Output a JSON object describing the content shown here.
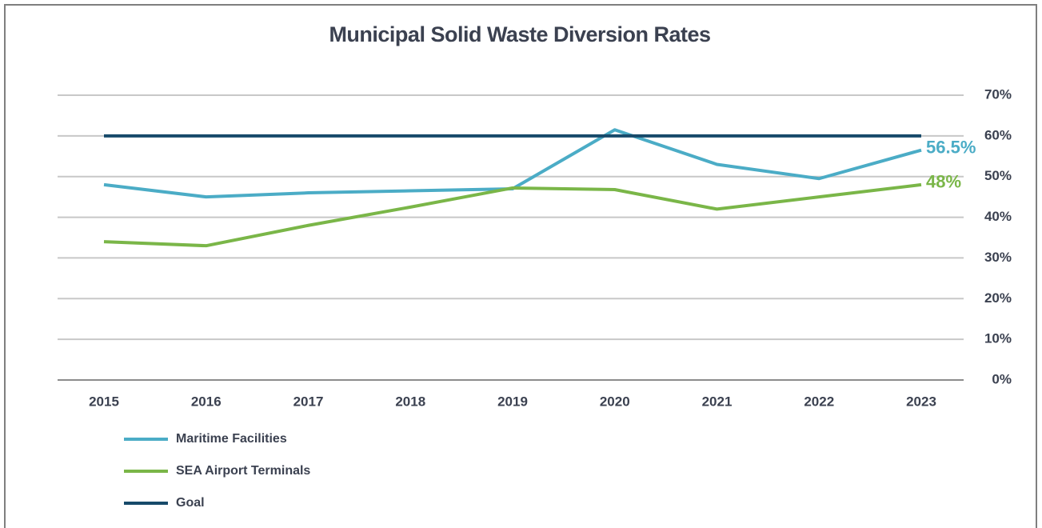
{
  "chart_data": {
    "type": "line",
    "title": "Municipal Solid Waste Diversion Rates",
    "categories": [
      "2015",
      "2016",
      "2017",
      "2018",
      "2019",
      "2020",
      "2021",
      "2022",
      "2023"
    ],
    "series": [
      {
        "name": "Maritime Facilities",
        "color": "#4bacc6",
        "values": [
          48,
          45,
          46,
          46.5,
          47,
          61.5,
          53,
          49.5,
          56.5
        ],
        "value_labels": [
          null,
          null,
          null,
          null,
          null,
          null,
          null,
          null,
          "56.5%"
        ]
      },
      {
        "name": "SEA Airport Terminals",
        "color": "#7ab648",
        "values": [
          34,
          33,
          38,
          42.5,
          47.2,
          46.8,
          42,
          45,
          48
        ],
        "value_labels": [
          null,
          null,
          null,
          null,
          null,
          null,
          null,
          null,
          "48%"
        ]
      },
      {
        "name": "Goal",
        "color": "#174a6a",
        "values": [
          60,
          60,
          60,
          60,
          60,
          60,
          60,
          60,
          60
        ]
      }
    ],
    "ylim": [
      0,
      70
    ],
    "yticks": [
      {
        "value": 0,
        "label": "0%"
      },
      {
        "value": 10,
        "label": "10%"
      },
      {
        "value": 20,
        "label": "20%"
      },
      {
        "value": 30,
        "label": "30%"
      },
      {
        "value": 40,
        "label": "40%"
      },
      {
        "value": 50,
        "label": "50%"
      },
      {
        "value": 60,
        "label": "60%"
      },
      {
        "value": 70,
        "label": "70%"
      }
    ],
    "grid": true,
    "legend": "bottom-left"
  }
}
